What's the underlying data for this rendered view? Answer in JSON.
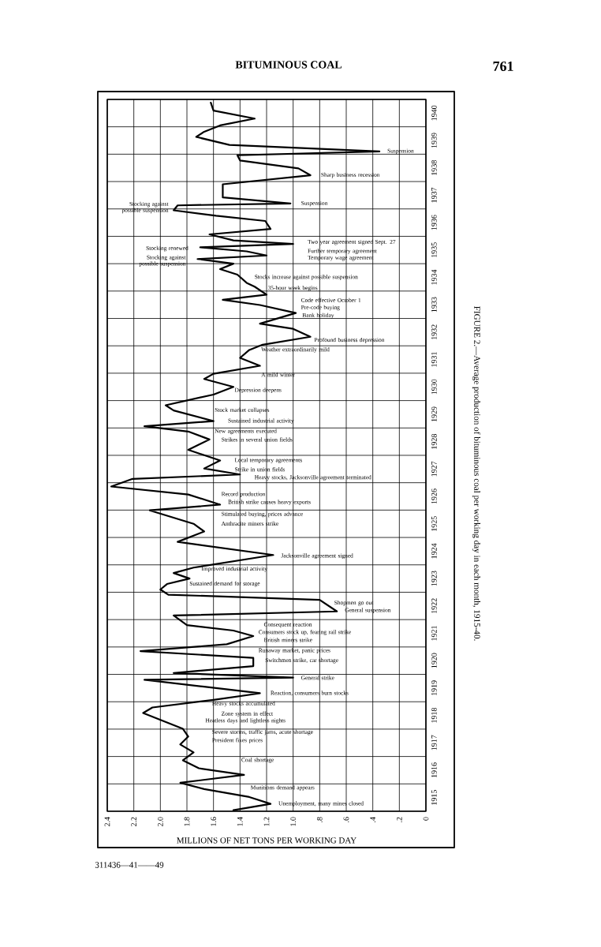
{
  "chart_data": {
    "type": "line",
    "orientation": "horizontal",
    "title": "FIGURE 2.—Average production of bituminous coal per working day in each month, 1915-40.",
    "xlabel": "MILLIONS OF NET TONS PER WORKING DAY",
    "xlim": [
      2.4,
      0
    ],
    "xticks": [
      {
        "value": 2.4,
        "label": "2.4"
      },
      {
        "value": 2.2,
        "label": "2.2"
      },
      {
        "value": 2.0,
        "label": "2.0"
      },
      {
        "value": 1.8,
        "label": "1.8"
      },
      {
        "value": 1.6,
        "label": "1.6"
      },
      {
        "value": 1.4,
        "label": "1.4"
      },
      {
        "value": 1.2,
        "label": "1.2"
      },
      {
        "value": 1.0,
        "label": "1.0"
      },
      {
        "value": 0.8,
        "label": ".8"
      },
      {
        "value": 0.6,
        "label": ".6"
      },
      {
        "value": 0.4,
        "label": ".4"
      },
      {
        "value": 0.2,
        "label": ".2"
      },
      {
        "value": 0,
        "label": "0"
      }
    ],
    "ylim": [
      1915,
      1941
    ],
    "yticks": [
      {
        "value": 1915,
        "label": null
      },
      {
        "value": 1915.5,
        "label": "1915"
      },
      {
        "value": 1916,
        "label": null
      },
      {
        "value": 1916.5,
        "label": "1916"
      },
      {
        "value": 1917,
        "label": null
      },
      {
        "value": 1917.5,
        "label": "1917"
      },
      {
        "value": 1918,
        "label": null
      },
      {
        "value": 1918.5,
        "label": "1918"
      },
      {
        "value": 1919,
        "label": null
      },
      {
        "value": 1919.5,
        "label": "1919"
      },
      {
        "value": 1920,
        "label": null
      },
      {
        "value": 1920.5,
        "label": "1920"
      },
      {
        "value": 1921,
        "label": null
      },
      {
        "value": 1921.5,
        "label": "1921"
      },
      {
        "value": 1922,
        "label": null
      },
      {
        "value": 1922.5,
        "label": "1922"
      },
      {
        "value": 1923,
        "label": null
      },
      {
        "value": 1923.5,
        "label": "1923"
      },
      {
        "value": 1924,
        "label": null
      },
      {
        "value": 1924.5,
        "label": "1924"
      },
      {
        "value": 1925,
        "label": null
      },
      {
        "value": 1925.5,
        "label": "1925"
      },
      {
        "value": 1926,
        "label": null
      },
      {
        "value": 1926.5,
        "label": "1926"
      },
      {
        "value": 1927,
        "label": null
      },
      {
        "value": 1927.5,
        "label": "1927"
      },
      {
        "value": 1928,
        "label": null
      },
      {
        "value": 1928.5,
        "label": "1928"
      },
      {
        "value": 1929,
        "label": null
      },
      {
        "value": 1929.5,
        "label": "1929"
      },
      {
        "value": 1930,
        "label": null
      },
      {
        "value": 1930.5,
        "label": "1930"
      },
      {
        "value": 1931,
        "label": null
      },
      {
        "value": 1931.5,
        "label": "1931"
      },
      {
        "value": 1932,
        "label": null
      },
      {
        "value": 1932.5,
        "label": "1932"
      },
      {
        "value": 1933,
        "label": null
      },
      {
        "value": 1933.5,
        "label": "1933"
      },
      {
        "value": 1934,
        "label": null
      },
      {
        "value": 1934.5,
        "label": "1934"
      },
      {
        "value": 1935,
        "label": null
      },
      {
        "value": 1935.5,
        "label": "1935"
      },
      {
        "value": 1936,
        "label": null
      },
      {
        "value": 1936.5,
        "label": "1936"
      },
      {
        "value": 1937,
        "label": null
      },
      {
        "value": 1937.5,
        "label": "1937"
      },
      {
        "value": 1938,
        "label": null
      },
      {
        "value": 1938.5,
        "label": "1938"
      },
      {
        "value": 1939,
        "label": null
      },
      {
        "value": 1939.5,
        "label": "1939"
      },
      {
        "value": 1940,
        "label": null
      },
      {
        "value": 1940.5,
        "label": "1940"
      },
      {
        "value": 1941,
        "label": null
      }
    ],
    "grid": true,
    "series": [
      {
        "color": "#000000",
        "x": [
          1915.04,
          1915.27,
          1915.52,
          1915.81,
          1916.04,
          1916.33,
          1916.57,
          1916.86,
          1917.15,
          1917.44,
          1917.73,
          1918.01,
          1918.3,
          1918.59,
          1918.79,
          1919.07,
          1919.31,
          1919.55,
          1919.8,
          1919.88,
          1920.05,
          1920.3,
          1920.6,
          1920.85,
          1921.1,
          1921.4,
          1921.6,
          1921.8,
          1922.15,
          1922.3,
          1922.72,
          1922.91,
          1923.1,
          1923.3,
          1923.5,
          1923.7,
          1923.9,
          1924.36,
          1924.84,
          1925.22,
          1925.5,
          1925.99,
          1926.2,
          1926.57,
          1926.86,
          1927.14,
          1927.3,
          1927.52,
          1927.81,
          1928.2,
          1928.58,
          1928.87,
          1929.06,
          1929.25,
          1929.64,
          1929.83,
          1930.22,
          1930.5,
          1930.79,
          1930.98,
          1931.27,
          1931.56,
          1931.85,
          1932.04,
          1932.33,
          1932.62,
          1932.81,
          1933.2,
          1933.49,
          1933.68,
          1933.87,
          1934.16,
          1934.3,
          1934.6,
          1934.8,
          1935.0,
          1935.17,
          1935.3,
          1935.45,
          1935.6,
          1935.72,
          1935.85,
          1936.07,
          1936.27,
          1936.56,
          1936.75,
          1936.95,
          1937.13,
          1937.2,
          1937.42,
          1937.61,
          1937.9,
          1938.23,
          1938.48,
          1938.77,
          1938.96,
          1939.1,
          1939.34,
          1939.63,
          1939.82,
          1940.05,
          1940.3,
          1940.59,
          1940.88
        ],
        "values": [
          1.45,
          1.17,
          1.33,
          1.67,
          1.85,
          1.37,
          1.71,
          1.83,
          1.75,
          1.85,
          1.79,
          1.83,
          1.98,
          2.13,
          2.06,
          1.6,
          1.25,
          1.67,
          2.12,
          1.0,
          1.9,
          1.3,
          1.3,
          2.15,
          1.5,
          1.3,
          1.45,
          1.8,
          1.9,
          0.67,
          0.8,
          1.94,
          2.0,
          1.95,
          1.78,
          1.9,
          1.75,
          1.15,
          1.87,
          1.67,
          1.75,
          2.08,
          1.55,
          1.79,
          2.37,
          2.21,
          1.4,
          1.67,
          1.55,
          1.79,
          1.63,
          1.79,
          2.12,
          1.6,
          1.9,
          1.96,
          1.6,
          1.45,
          1.67,
          1.6,
          1.25,
          1.4,
          1.33,
          1.23,
          0.87,
          1.0,
          1.25,
          0.98,
          1.25,
          1.53,
          1.2,
          1.29,
          1.35,
          1.42,
          1.55,
          1.45,
          1.72,
          1.2,
          1.35,
          1.7,
          1.0,
          1.45,
          1.63,
          1.17,
          1.21,
          1.58,
          1.9,
          1.87,
          1.02,
          1.53,
          1.53,
          1.53,
          0.87,
          0.96,
          1.4,
          1.42,
          0.35,
          1.48,
          1.73,
          1.67,
          1.55,
          1.29,
          1.6,
          1.62
        ]
      }
    ],
    "annotations": [
      "BITUMINOUS COAL",
      "761",
      "311436—41——49",
      "Unemployment, many mines closed",
      "Munitions demand appears",
      "Coal shortage",
      "President fixes prices",
      "Severe storms, traffic jams, acute shortage",
      "Heatless days and lightless nights",
      "Zone system in effect",
      "Heavy stocks accumulated",
      "Reaction, consumers burn stocks",
      "General strike",
      "Switchmen strike, car shortage",
      "Runaway market, panic prices",
      "British miners strike",
      "Consumers stock up, fearing rail strike",
      "Consequent reaction",
      "General suspension",
      "Shopmen go out",
      "Sustained demand for storage",
      "Improved industrial activity",
      "Jacksonville agreement signed",
      "Anthracite miners strike",
      "Stimulated buying, prices advance",
      "British strike causes heavy exports",
      "Record production",
      "Heavy stocks, Jacksonville agreement terminated",
      "Strike in union fields",
      "Local temporary agreements",
      "Strikes in several union fields",
      "New agreements executed",
      "Sustained industrial activity",
      "Stock market collapses",
      "Depression deepens",
      "A mild winter",
      "Weather extraordinarily mild",
      "Profound business depression",
      "Bank holiday",
      "Pre-code buying",
      "Code effective October 1",
      "35-hour week begins",
      "Stocks increase against possible suspension",
      "Stocking against possible suspension",
      "Temporary wage agreement",
      "Further temporary agreement",
      "Stocking renewed",
      "Two year agreement signed Sept. 27",
      "Stocking against possible suspension",
      "Suspension",
      "Sharp business recession",
      "Suspension"
    ]
  }
}
